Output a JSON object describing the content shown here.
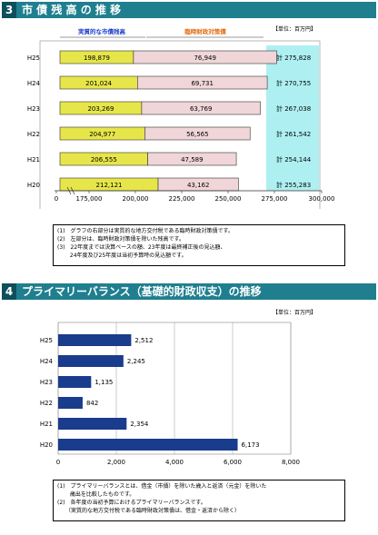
{
  "section1": {
    "number": "3",
    "title": "市 債 残 高 の 推 移",
    "unit": "【単位：百万円】",
    "label_left": "実質的な市債残高",
    "label_right": "臨時財政対策債",
    "notes": [
      "(1)　グラフの右部分は実質的な地方交付税である臨時財政対策債です。",
      "(2)　左部分は、臨時財政対策債を除いた残高です。",
      "(3)　22年度までは決算ベースの額、23年度は最終補正後の見込額、",
      "　　 24年度及び25年度は当初予算時の見込額です。"
    ]
  },
  "section2": {
    "number": "4",
    "title": "プライマリーバランス（基礎的財政収支）の推移",
    "unit": "【単位：百万円】",
    "notes": [
      "(1)　プライマリーバランスとは、借金（市債）を除いた歳入と返済（元金）を除いた",
      "　　 歳出を比較したものです。",
      "(2)　各年度の当初予算におけるプライマリーバランスです。",
      "　　（実質的な地方交付税である臨時財政対策債は、借金・返済から除く）"
    ]
  },
  "chart_data": [
    {
      "type": "bar",
      "orientation": "horizontal",
      "stacked": true,
      "categories": [
        "H25",
        "H24",
        "H23",
        "H22",
        "H21",
        "H20"
      ],
      "series": [
        {
          "name": "実質的な市債残高",
          "values": [
            198879,
            201024,
            203269,
            204977,
            206555,
            212121
          ],
          "color": "#e6e64a"
        },
        {
          "name": "臨時財政対策債",
          "values": [
            76949,
            69731,
            63769,
            56565,
            47589,
            43162
          ],
          "color": "#f0d6d8"
        }
      ],
      "totals": [
        "計 275,828",
        "計 270,755",
        "計 267,038",
        "計 261,542",
        "計 254,144",
        "計 255,283"
      ],
      "x_ticks": [
        "0",
        "175,000",
        "200,000",
        "225,000",
        "250,000",
        "275,000",
        "300,000"
      ],
      "xlim": [
        150000,
        300000
      ],
      "axis_break": true,
      "grid": false
    },
    {
      "type": "bar",
      "orientation": "horizontal",
      "categories": [
        "H25",
        "H24",
        "H23",
        "H22",
        "H21",
        "H20"
      ],
      "values": [
        2512,
        2245,
        1135,
        842,
        2354,
        6173
      ],
      "value_labels": [
        "2,512",
        "2,245",
        "1,135",
        "842",
        "2,354",
        "6,173"
      ],
      "x_ticks": [
        0,
        2000,
        4000,
        6000,
        8000
      ],
      "x_tick_labels": [
        "0",
        "2,000",
        "4,000",
        "6,000",
        "8,000"
      ],
      "xlim": [
        0,
        8000
      ],
      "color": "#1a3c8c",
      "grid": true
    }
  ]
}
